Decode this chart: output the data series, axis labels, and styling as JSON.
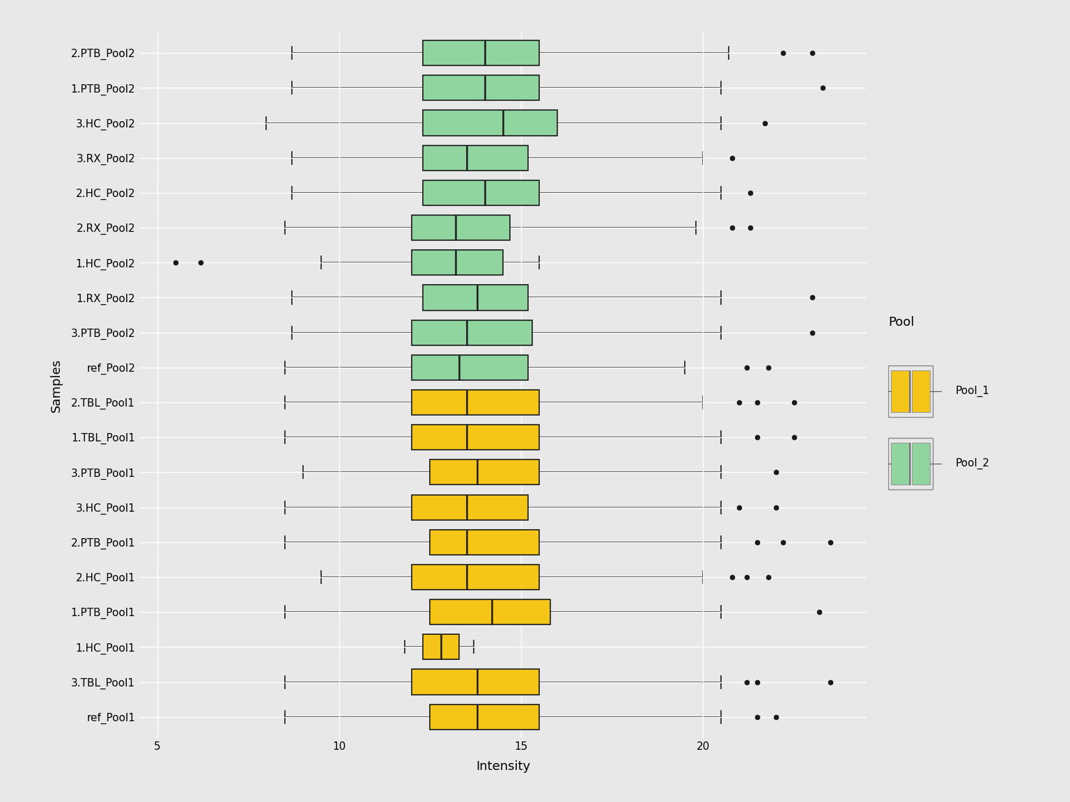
{
  "samples": [
    "2.PTB_Pool2",
    "1.PTB_Pool2",
    "3.HC_Pool2",
    "3.RX_Pool2",
    "2.HC_Pool2",
    "2.RX_Pool2",
    "1.HC_Pool2",
    "1.RX_Pool2",
    "3.PTB_Pool2",
    "ref_Pool2",
    "2.TBL_Pool1",
    "1.TBL_Pool1",
    "3.PTB_Pool1",
    "3.HC_Pool1",
    "2.PTB_Pool1",
    "2.HC_Pool1",
    "1.PTB_Pool1",
    "1.HC_Pool1",
    "3.TBL_Pool1",
    "ref_Pool1"
  ],
  "pools": [
    "Pool2",
    "Pool2",
    "Pool2",
    "Pool2",
    "Pool2",
    "Pool2",
    "Pool2",
    "Pool2",
    "Pool2",
    "Pool2",
    "Pool1",
    "Pool1",
    "Pool1",
    "Pool1",
    "Pool1",
    "Pool1",
    "Pool1",
    "Pool1",
    "Pool1",
    "Pool1"
  ],
  "box_data": {
    "2.PTB_Pool2": {
      "q1": 12.3,
      "median": 14.0,
      "q3": 15.5,
      "whislo": 8.7,
      "whishi": 20.7,
      "fliers": [
        22.2,
        23.0
      ]
    },
    "1.PTB_Pool2": {
      "q1": 12.3,
      "median": 14.0,
      "q3": 15.5,
      "whislo": 8.7,
      "whishi": 20.5,
      "fliers": [
        23.3
      ]
    },
    "3.HC_Pool2": {
      "q1": 12.3,
      "median": 14.5,
      "q3": 16.0,
      "whislo": 8.0,
      "whishi": 20.5,
      "fliers": [
        21.7
      ]
    },
    "3.RX_Pool2": {
      "q1": 12.3,
      "median": 13.5,
      "q3": 15.2,
      "whislo": 8.7,
      "whishi": 20.0,
      "fliers": [
        20.8
      ]
    },
    "2.HC_Pool2": {
      "q1": 12.3,
      "median": 14.0,
      "q3": 15.5,
      "whislo": 8.7,
      "whishi": 20.5,
      "fliers": [
        21.3
      ]
    },
    "2.RX_Pool2": {
      "q1": 12.0,
      "median": 13.2,
      "q3": 14.7,
      "whislo": 8.5,
      "whishi": 19.8,
      "fliers": [
        20.8,
        21.3
      ]
    },
    "1.HC_Pool2": {
      "q1": 12.0,
      "median": 13.2,
      "q3": 14.5,
      "whislo": 9.5,
      "whishi": 15.5,
      "fliers": [
        5.5,
        6.2
      ]
    },
    "1.RX_Pool2": {
      "q1": 12.3,
      "median": 13.8,
      "q3": 15.2,
      "whislo": 8.7,
      "whishi": 20.5,
      "fliers": [
        23.0
      ]
    },
    "3.PTB_Pool2": {
      "q1": 12.0,
      "median": 13.5,
      "q3": 15.3,
      "whislo": 8.7,
      "whishi": 20.5,
      "fliers": [
        23.0
      ]
    },
    "ref_Pool2": {
      "q1": 12.0,
      "median": 13.3,
      "q3": 15.2,
      "whislo": 8.5,
      "whishi": 19.5,
      "fliers": [
        21.2,
        21.8
      ]
    },
    "2.TBL_Pool1": {
      "q1": 12.0,
      "median": 13.5,
      "q3": 15.5,
      "whislo": 8.5,
      "whishi": 20.0,
      "fliers": [
        21.0,
        21.5,
        22.5
      ]
    },
    "1.TBL_Pool1": {
      "q1": 12.0,
      "median": 13.5,
      "q3": 15.5,
      "whislo": 8.5,
      "whishi": 20.5,
      "fliers": [
        21.5,
        22.5
      ]
    },
    "3.PTB_Pool1": {
      "q1": 12.5,
      "median": 13.8,
      "q3": 15.5,
      "whislo": 9.0,
      "whishi": 20.5,
      "fliers": [
        22.0
      ]
    },
    "3.HC_Pool1": {
      "q1": 12.0,
      "median": 13.5,
      "q3": 15.2,
      "whislo": 8.5,
      "whishi": 20.5,
      "fliers": [
        21.0,
        22.0
      ]
    },
    "2.PTB_Pool1": {
      "q1": 12.5,
      "median": 13.5,
      "q3": 15.5,
      "whislo": 8.5,
      "whishi": 20.5,
      "fliers": [
        21.5,
        22.2,
        23.5
      ]
    },
    "2.HC_Pool1": {
      "q1": 12.0,
      "median": 13.5,
      "q3": 15.5,
      "whislo": 9.5,
      "whishi": 20.0,
      "fliers": [
        20.8,
        21.2,
        21.8
      ]
    },
    "1.PTB_Pool1": {
      "q1": 12.5,
      "median": 14.2,
      "q3": 15.8,
      "whislo": 8.5,
      "whishi": 20.5,
      "fliers": [
        23.2
      ]
    },
    "1.HC_Pool1": {
      "q1": 12.3,
      "median": 12.8,
      "q3": 13.3,
      "whislo": 11.8,
      "whishi": 13.7,
      "fliers": []
    },
    "3.TBL_Pool1": {
      "q1": 12.0,
      "median": 13.8,
      "q3": 15.5,
      "whislo": 8.5,
      "whishi": 20.5,
      "fliers": [
        21.2,
        21.5,
        23.5
      ]
    },
    "ref_Pool1": {
      "q1": 12.5,
      "median": 13.8,
      "q3": 15.5,
      "whislo": 8.5,
      "whishi": 20.5,
      "fliers": [
        21.5,
        22.0
      ]
    }
  },
  "color_pool1": "#F5C518",
  "color_pool2": "#90D4A0",
  "color_pool1_edge": "#C8A000",
  "color_pool2_edge": "#50A060",
  "background_color": "#E8E8E8",
  "panel_bg": "#E8E8E8",
  "grid_color": "#FFFFFF",
  "xlabel": "Intensity",
  "ylabel": "Samples",
  "xlim": [
    4.5,
    24.5
  ],
  "xticks": [
    5,
    10,
    15,
    20
  ],
  "legend_title": "Pool",
  "legend_labels": [
    "Pool_1",
    "Pool_2"
  ]
}
